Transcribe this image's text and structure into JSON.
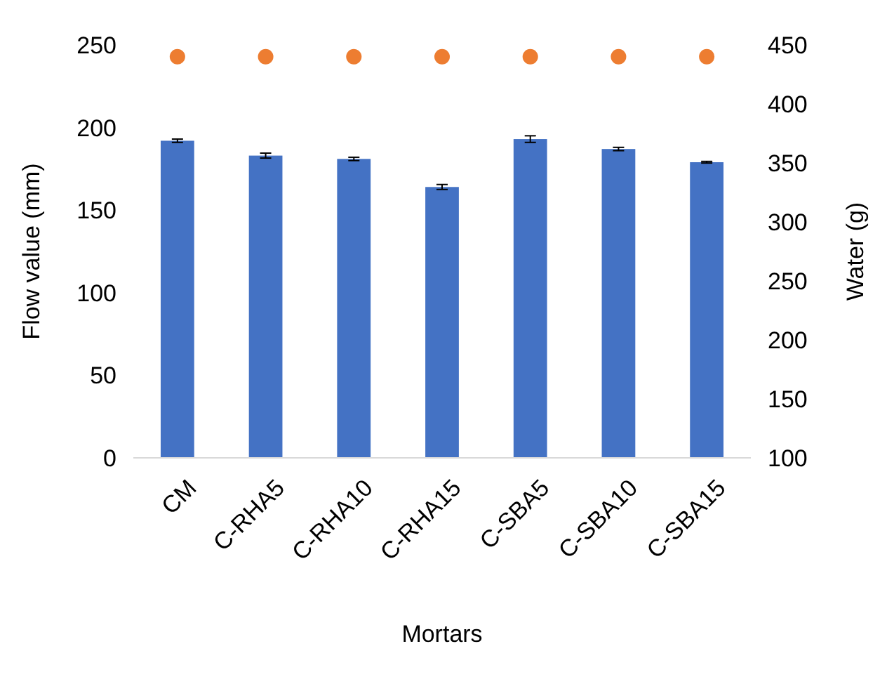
{
  "chart_data": {
    "type": "bar",
    "xlabel": "Mortars",
    "ylabel": "Flow value (mm)",
    "y2label": "Water (g)",
    "categories": [
      "CM",
      "C-RHA5",
      "C-RHA10",
      "C-RHA15",
      "C-SBA5",
      "C-SBA10",
      "C-SBA15"
    ],
    "series": [
      {
        "color": "#4472c4",
        "values": [
          192,
          183,
          181,
          164,
          193,
          187,
          179
        ],
        "errors": [
          1,
          1.5,
          1,
          1.5,
          2,
          1,
          0.5
        ]
      },
      {
        "type": "scatter",
        "axis": "y2",
        "color": "#ed7d31",
        "marker": "circle",
        "values": [
          440,
          440,
          440,
          440,
          440,
          440,
          440
        ]
      }
    ],
    "ylim": [
      0,
      250
    ],
    "yticks": [
      0,
      50,
      100,
      150,
      200,
      250
    ],
    "y2lim": [
      100,
      450
    ],
    "y2ticks": [
      100,
      150,
      200,
      250,
      300,
      350,
      400,
      450
    ],
    "grid": false
  }
}
